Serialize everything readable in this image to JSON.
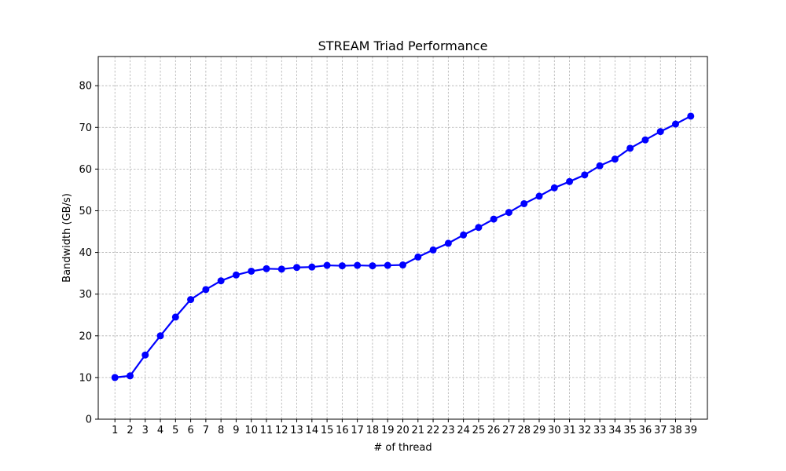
{
  "chart_data": {
    "type": "line",
    "title": "STREAM Triad Performance",
    "xlabel": "# of thread",
    "ylabel": "Bandwidth (GB/s)",
    "x": [
      1,
      2,
      3,
      4,
      5,
      6,
      7,
      8,
      9,
      10,
      11,
      12,
      13,
      14,
      15,
      16,
      17,
      18,
      19,
      20,
      21,
      22,
      23,
      24,
      25,
      26,
      27,
      28,
      29,
      30,
      31,
      32,
      33,
      34,
      35,
      36,
      37,
      38,
      39
    ],
    "series": [
      {
        "values": [
          10.0,
          10.4,
          15.4,
          20.0,
          24.5,
          28.7,
          31.1,
          33.2,
          34.6,
          35.5,
          36.1,
          36.0,
          36.4,
          36.5,
          36.9,
          36.8,
          36.9,
          36.8,
          36.9,
          37.0,
          38.9,
          40.6,
          42.2,
          44.2,
          46.0,
          48.0,
          49.6,
          51.7,
          53.5,
          55.5,
          57.0,
          58.6,
          60.8,
          62.4,
          65.0,
          67.0,
          69.0,
          70.8,
          72.7
        ]
      }
    ],
    "xlim": [
      -0.1,
      40.1
    ],
    "ylim": [
      0,
      87
    ],
    "yticks": [
      0,
      10,
      20,
      30,
      40,
      50,
      60,
      70,
      80
    ],
    "grid": true,
    "series_color": "#0000ff"
  }
}
